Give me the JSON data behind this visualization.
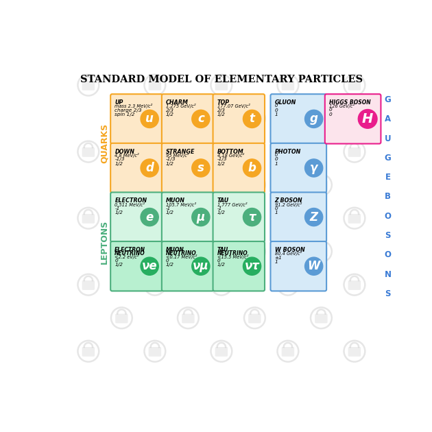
{
  "title": "STANDARD MODEL OF ELEMENTARY PARTICLES",
  "bg": "#ffffff",
  "quark_fill": "#fde8c8",
  "quark_edge": "#f5a623",
  "quark_circle": "#f5a623",
  "lepton_fill": "#d5f5e3",
  "lepton_edge": "#4caf7d",
  "lepton_circle": "#4caf7d",
  "neutrino_fill": "#b8f0d0",
  "neutrino_circle": "#27ae60",
  "gauge_fill": "#d6eaf8",
  "gauge_edge": "#5b9bd5",
  "gauge_circle": "#5b9bd5",
  "higgs_fill": "#fce4ec",
  "higgs_edge": "#e91e8c",
  "higgs_circle": "#e91e8c",
  "quarks_label_color": "#f5a623",
  "leptons_label_color": "#4caf7d",
  "gauge_label_color": "#3a7bd5",
  "lock_color": "#c8c8c8",
  "quarks": [
    {
      "name": "UP",
      "sym": "u",
      "line1": "mass 2.3 MeV/c²",
      "line2": "charge 2/3",
      "line3": "spin 1/2",
      "row": 0,
      "col": 0
    },
    {
      "name": "CHARM",
      "sym": "c",
      "line1": "1.275 GeV/c²",
      "line2": "2/3",
      "line3": "1/2",
      "row": 0,
      "col": 1
    },
    {
      "name": "TOP",
      "sym": "t",
      "line1": "177.07 GeV/c²",
      "line2": "2/3",
      "line3": "1/2",
      "row": 0,
      "col": 2
    },
    {
      "name": "DOWN",
      "sym": "d",
      "line1": "4.8 MeV/c²",
      "line2": "-1/3",
      "line3": "1/2",
      "row": 1,
      "col": 0
    },
    {
      "name": "STRANGE",
      "sym": "s",
      "line1": "95 MeV/c²",
      "line2": "-1/3",
      "line3": "1/2",
      "row": 1,
      "col": 1
    },
    {
      "name": "BOTTOM",
      "sym": "b",
      "line1": "4.18 GeV/c²",
      "line2": "-1/3",
      "line3": "1/2",
      "row": 1,
      "col": 2
    }
  ],
  "leptons": [
    {
      "name": "ELECTRON",
      "sym": "e",
      "line1": "0.511 MeV/c²",
      "line2": "-1",
      "line3": "1/2",
      "row": 2,
      "col": 0,
      "neutrino": false
    },
    {
      "name": "MUON",
      "sym": "μ",
      "line1": "105.7 MeV/c²",
      "line2": "-1",
      "line3": "1/2",
      "row": 2,
      "col": 1,
      "neutrino": false
    },
    {
      "name": "TAU",
      "sym": "τ",
      "line1": "1.777 GeV/c²",
      "line2": "-1",
      "line3": "1/2",
      "row": 2,
      "col": 2,
      "neutrino": false
    },
    {
      "name": "ELECTRON\nNEUTRINO",
      "sym": "νe",
      "line1": "<2.2 eV/c²",
      "line2": "0",
      "line3": "1/2",
      "row": 3,
      "col": 0,
      "neutrino": true
    },
    {
      "name": "MUON\nNEUTRINO",
      "sym": "νμ",
      "line1": "<0.17 MeV/c²",
      "line2": "0",
      "line3": "1/2",
      "row": 3,
      "col": 1,
      "neutrino": true
    },
    {
      "name": "TAU\nNEUTRINO",
      "sym": "ντ",
      "line1": "<15.5 MeV/c²",
      "line2": "0",
      "line3": "1/2",
      "row": 3,
      "col": 2,
      "neutrino": true
    }
  ],
  "gauge_bosons": [
    {
      "name": "GLUON",
      "sym": "g",
      "line1": "0",
      "line2": "0",
      "line3": "1",
      "row": 0
    },
    {
      "name": "PHOTON",
      "sym": "γ",
      "line1": "0",
      "line2": "0",
      "line3": "1",
      "row": 1
    },
    {
      "name": "Z BOSON",
      "sym": "Z",
      "line1": "91.2 GeV/c²",
      "line2": "0",
      "line3": "1",
      "row": 2
    },
    {
      "name": "W BOSON",
      "sym": "W",
      "line1": "80.4 GeV/c²",
      "line2": "±1",
      "line3": "1",
      "row": 3
    }
  ],
  "higgs": {
    "name": "HIGGS BOSON",
    "sym": "H",
    "line1": "126 GeV/c²",
    "line2": "0",
    "line3": "0"
  }
}
